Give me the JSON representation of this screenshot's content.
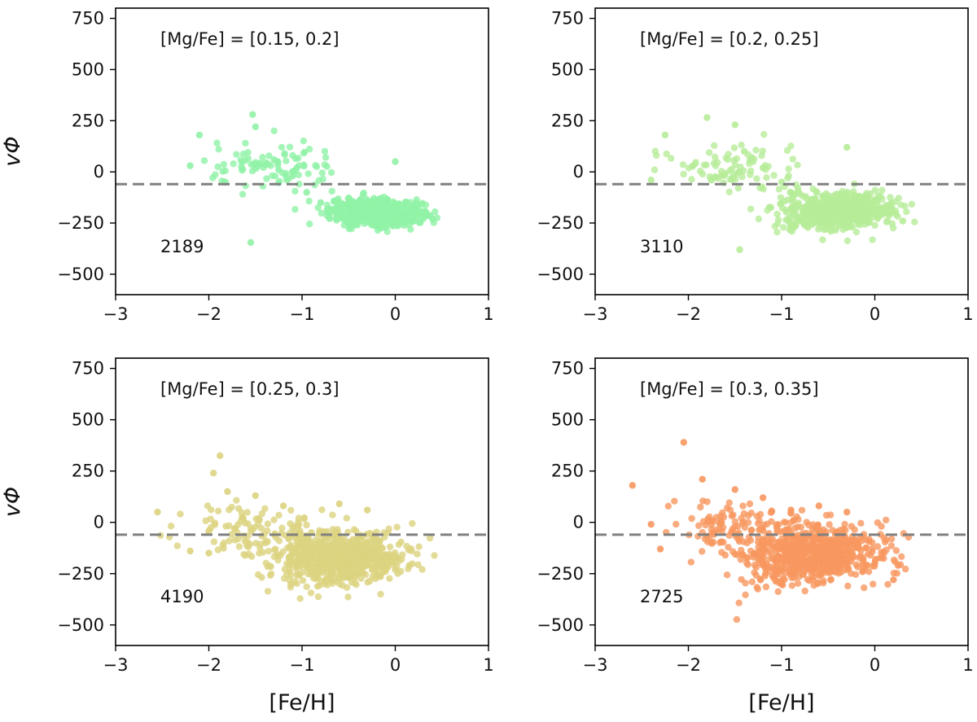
{
  "chart_data": [
    {
      "type": "scatter",
      "title": "",
      "annotation": "[Mg/Fe] = [0.15, 0.2]",
      "count_label": "2189",
      "color": "#90F2A6",
      "xlabel": "",
      "ylabel": "vΦ",
      "xlim": [
        -3,
        1
      ],
      "ylim": [
        -600,
        800
      ],
      "xticks": [
        "−3",
        "−2",
        "−1",
        "0",
        "1"
      ],
      "yticks": [
        "750",
        "500",
        "250",
        "0",
        "−250",
        "−500"
      ],
      "reference_line_y": -60,
      "cluster_summary": {
        "main_center": [
          -0.2,
          -200
        ],
        "main_spread": [
          0.25,
          30
        ],
        "secondary_center": [
          -1.3,
          10
        ]
      },
      "sample_points": {
        "x": [
          -1.53,
          -1.5,
          -2.1,
          -2.2,
          -1.55,
          -1.3,
          -1.25,
          -1.1,
          -0.95,
          -0.8,
          -0.6,
          -0.4,
          -0.2,
          0.0,
          0.2,
          0.4,
          -0.3,
          -0.1,
          0.1,
          -0.5
        ],
        "y": [
          280,
          220,
          180,
          30,
          -345,
          60,
          10,
          -20,
          -100,
          -150,
          -180,
          -220,
          -260,
          50,
          -240,
          -230,
          -200,
          -190,
          -210,
          -250
        ]
      }
    },
    {
      "type": "scatter",
      "title": "",
      "annotation": "[Mg/Fe] = [0.2, 0.25]",
      "count_label": "3110",
      "color": "#B6EC98",
      "xlabel": "",
      "ylabel": "",
      "xlim": [
        -3,
        1
      ],
      "ylim": [
        -600,
        800
      ],
      "xticks": [
        "−3",
        "−2",
        "−1",
        "0",
        "1"
      ],
      "yticks": [
        "750",
        "500",
        "250",
        "0",
        "−250",
        "−500"
      ],
      "reference_line_y": -60,
      "cluster_summary": {
        "main_center": [
          -0.4,
          -190
        ],
        "main_spread": [
          0.3,
          40
        ],
        "secondary_center": [
          -1.5,
          20
        ]
      },
      "sample_points": {
        "x": [
          -1.8,
          -2.25,
          -1.5,
          -1.4,
          -1.2,
          -1.0,
          -0.9,
          -1.45,
          -0.3,
          0.1,
          0.3,
          -0.7,
          -0.5,
          -0.2,
          -2.4
        ],
        "y": [
          265,
          180,
          230,
          100,
          20,
          -50,
          -100,
          -380,
          120,
          -200,
          -240,
          -250,
          -180,
          -200,
          -40
        ]
      }
    },
    {
      "type": "scatter",
      "title": "",
      "annotation": "[Mg/Fe] = [0.25, 0.3]",
      "count_label": "4190",
      "color": "#DCD37F",
      "xlabel": "[Fe/H]",
      "ylabel": "vΦ",
      "xlim": [
        -3,
        1
      ],
      "ylim": [
        -600,
        800
      ],
      "xticks": [
        "−3",
        "−2",
        "−1",
        "0",
        "1"
      ],
      "yticks": [
        "750",
        "500",
        "250",
        "0",
        "−250",
        "−500"
      ],
      "reference_line_y": -60,
      "cluster_summary": {
        "main_center": [
          -0.6,
          -170
        ],
        "main_spread": [
          0.35,
          60
        ],
        "secondary_center": [
          -1.6,
          -40
        ]
      },
      "sample_points": {
        "x": [
          -1.88,
          -1.95,
          -2.55,
          -2.2,
          -1.5,
          -1.2,
          -0.9,
          -0.6,
          -0.3,
          0.0,
          0.15,
          -0.5,
          -2.0,
          -1.8
        ],
        "y": [
          325,
          240,
          50,
          -140,
          130,
          80,
          -50,
          90,
          60,
          -230,
          -210,
          -270,
          -150,
          150
        ]
      }
    },
    {
      "type": "scatter",
      "title": "",
      "annotation": "[Mg/Fe] = [0.3, 0.35]",
      "count_label": "2725",
      "color": "#F7975F",
      "xlabel": "[Fe/H]",
      "ylabel": "",
      "xlim": [
        -3,
        1
      ],
      "ylim": [
        -600,
        800
      ],
      "xticks": [
        "−3",
        "−2",
        "−1",
        "0",
        "1"
      ],
      "yticks": [
        "750",
        "500",
        "250",
        "0",
        "−250",
        "−500"
      ],
      "reference_line_y": -60,
      "cluster_summary": {
        "main_center": [
          -0.7,
          -150
        ],
        "main_spread": [
          0.4,
          70
        ],
        "secondary_center": [
          -1.6,
          -20
        ]
      },
      "sample_points": {
        "x": [
          -2.05,
          -2.6,
          -1.85,
          -1.5,
          -1.2,
          -0.9,
          -0.6,
          -0.3,
          0.0,
          0.2,
          0.25,
          -2.3,
          -2.4,
          -1.0
        ],
        "y": [
          390,
          180,
          210,
          160,
          120,
          60,
          80,
          50,
          -200,
          -280,
          -210,
          -130,
          -10,
          -300
        ]
      }
    }
  ]
}
